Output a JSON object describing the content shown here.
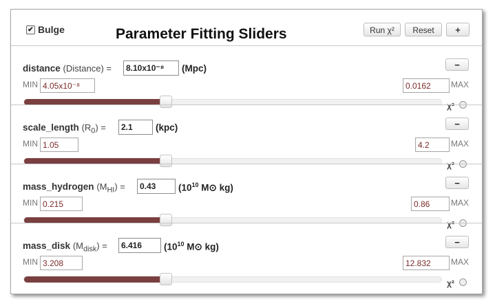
{
  "header": {
    "bulge_checked_glyph": "✔",
    "bulge_label": "Bulge",
    "title": "Parameter Fitting Sliders",
    "run_label": "Run χ²",
    "reset_label": "Reset",
    "plus_label": "+"
  },
  "params": [
    {
      "name": "distance",
      "symbol_open": "(Distance) =",
      "symbol_sub": "",
      "symbol_close": "",
      "value": "8.10x10⁻⁸",
      "unit": "(Mpc)",
      "unit_sup": "",
      "unit_sun": "",
      "unit_after": "",
      "min": "4.05x10⁻⁸",
      "max": "0.0162",
      "minus_label": "−",
      "min_label": "MIN",
      "max_label": "MAX",
      "chi_label": "χ²",
      "slider_fraction": 0.34
    },
    {
      "name": "scale_length",
      "symbol_open": "(R",
      "symbol_sub": "0",
      "symbol_close": ") =",
      "value": "2.1",
      "unit": "(kpc)",
      "unit_sup": "",
      "unit_sun": "",
      "unit_after": "",
      "min": "1.05",
      "max": "4.2",
      "minus_label": "−",
      "min_label": "MIN",
      "max_label": "MAX",
      "chi_label": "χ²",
      "slider_fraction": 0.34
    },
    {
      "name": "mass_hydrogen",
      "symbol_open": "(M",
      "symbol_sub": "HI",
      "symbol_close": ") =",
      "value": "0.43",
      "unit": "(10",
      "unit_sup": "10",
      "unit_sun": "M⊙",
      "unit_after": "kg)",
      "min": "0.215",
      "max": "0.86",
      "minus_label": "−",
      "min_label": "MIN",
      "max_label": "MAX",
      "chi_label": "χ²",
      "slider_fraction": 0.34
    },
    {
      "name": "mass_disk",
      "symbol_open": "(M",
      "symbol_sub": "disk",
      "symbol_close": ") =",
      "value": "6.416",
      "unit": "(10",
      "unit_sup": "10",
      "unit_sun": "M⊙",
      "unit_after": "kg)",
      "min": "3.208",
      "max": "12.832",
      "minus_label": "−",
      "min_label": "MIN",
      "max_label": "MAX",
      "chi_label": "χ²",
      "slider_fraction": 0.34
    }
  ]
}
